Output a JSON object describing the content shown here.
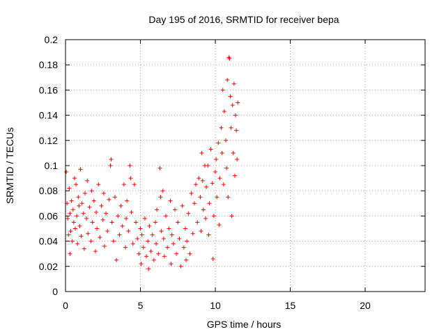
{
  "chart_data": {
    "type": "scatter",
    "title": "Day 195 of 2016, SRMTID for receiver bepa",
    "xlabel": "GPS time / hours",
    "ylabel": "SRMTID / TECUs",
    "xlim": [
      0,
      24
    ],
    "ylim": [
      0,
      0.2
    ],
    "x_ticks": [
      0,
      5,
      10,
      15,
      20
    ],
    "x_tick_labels": [
      "0",
      "5",
      "10",
      "15",
      "20"
    ],
    "y_ticks": [
      0,
      0.02,
      0.04,
      0.06,
      0.08,
      0.1,
      0.12,
      0.14,
      0.16,
      0.18,
      0.2
    ],
    "y_tick_labels": [
      "0",
      "0.02",
      "0.04",
      "0.06",
      "0.08",
      "0.1",
      "0.12",
      "0.14",
      "0.16",
      "0.18",
      "0.2"
    ],
    "grid": true,
    "marker": "+",
    "color": "#ff0000",
    "series": [
      {
        "name": "SRMTID",
        "points": [
          [
            0.05,
            0.095
          ],
          [
            0.1,
            0.07
          ],
          [
            0.15,
            0.058
          ],
          [
            0.2,
            0.045
          ],
          [
            0.25,
            0.082
          ],
          [
            0.3,
            0.03
          ],
          [
            0.3,
            0.062
          ],
          [
            0.35,
            0.048
          ],
          [
            0.4,
            0.072
          ],
          [
            0.45,
            0.04
          ],
          [
            0.5,
            0.065
          ],
          [
            0.55,
            0.055
          ],
          [
            0.6,
            0.09
          ],
          [
            0.65,
            0.05
          ],
          [
            0.7,
            0.085
          ],
          [
            0.75,
            0.06
          ],
          [
            0.8,
            0.038
          ],
          [
            0.85,
            0.075
          ],
          [
            0.9,
            0.068
          ],
          [
            0.95,
            0.052
          ],
          [
            1.0,
            0.097
          ],
          [
            1.05,
            0.044
          ],
          [
            1.1,
            0.07
          ],
          [
            1.2,
            0.062
          ],
          [
            1.25,
            0.034
          ],
          [
            1.3,
            0.078
          ],
          [
            1.4,
            0.058
          ],
          [
            1.45,
            0.088
          ],
          [
            1.5,
            0.046
          ],
          [
            1.6,
            0.067
          ],
          [
            1.7,
            0.04
          ],
          [
            1.75,
            0.08
          ],
          [
            1.8,
            0.055
          ],
          [
            1.9,
            0.072
          ],
          [
            2.0,
            0.032
          ],
          [
            2.05,
            0.063
          ],
          [
            2.1,
            0.05
          ],
          [
            2.2,
            0.085
          ],
          [
            2.3,
            0.043
          ],
          [
            2.4,
            0.068
          ],
          [
            2.5,
            0.057
          ],
          [
            2.55,
            0.078
          ],
          [
            2.6,
            0.036
          ],
          [
            2.7,
            0.062
          ],
          [
            2.8,
            0.048
          ],
          [
            2.9,
            0.073
          ],
          [
            3.0,
            0.1
          ],
          [
            3.05,
            0.105
          ],
          [
            3.1,
            0.055
          ],
          [
            3.2,
            0.04
          ],
          [
            3.3,
            0.075
          ],
          [
            3.4,
            0.025
          ],
          [
            3.5,
            0.06
          ],
          [
            3.6,
            0.045
          ],
          [
            3.7,
            0.068
          ],
          [
            3.8,
            0.052
          ],
          [
            3.9,
            0.085
          ],
          [
            4.0,
            0.035
          ],
          [
            4.05,
            0.058
          ],
          [
            4.1,
            0.072
          ],
          [
            4.2,
            0.048
          ],
          [
            4.3,
            0.1
          ],
          [
            4.35,
            0.09
          ],
          [
            4.4,
            0.063
          ],
          [
            4.5,
            0.038
          ],
          [
            4.6,
            0.085
          ],
          [
            4.7,
            0.055
          ],
          [
            4.8,
            0.042
          ],
          [
            4.9,
            0.03
          ],
          [
            5.0,
            0.05
          ],
          [
            5.05,
            0.022
          ],
          [
            5.1,
            0.045
          ],
          [
            5.2,
            0.035
          ],
          [
            5.3,
            0.058
          ],
          [
            5.4,
            0.028
          ],
          [
            5.5,
            0.04
          ],
          [
            5.55,
            0.018
          ],
          [
            5.6,
            0.052
          ],
          [
            5.7,
            0.032
          ],
          [
            5.8,
            0.045
          ],
          [
            5.9,
            0.025
          ],
          [
            6.0,
            0.055
          ],
          [
            6.05,
            0.038
          ],
          [
            6.1,
            0.065
          ],
          [
            6.2,
            0.03
          ],
          [
            6.3,
            0.098
          ],
          [
            6.35,
            0.075
          ],
          [
            6.4,
            0.048
          ],
          [
            6.5,
            0.08
          ],
          [
            6.55,
            0.042
          ],
          [
            6.6,
            0.028
          ],
          [
            6.7,
            0.06
          ],
          [
            6.8,
            0.035
          ],
          [
            6.9,
            0.05
          ],
          [
            7.0,
            0.072
          ],
          [
            7.05,
            0.022
          ],
          [
            7.1,
            0.045
          ],
          [
            7.2,
            0.038
          ],
          [
            7.3,
            0.065
          ],
          [
            7.4,
            0.03
          ],
          [
            7.5,
            0.055
          ],
          [
            7.6,
            0.042
          ],
          [
            7.7,
            0.02
          ],
          [
            7.8,
            0.068
          ],
          [
            7.9,
            0.035
          ],
          [
            8.0,
            0.05
          ],
          [
            8.05,
            0.025
          ],
          [
            8.1,
            0.04
          ],
          [
            8.2,
            0.062
          ],
          [
            8.3,
            0.03
          ],
          [
            8.4,
            0.078
          ],
          [
            8.5,
            0.046
          ],
          [
            8.6,
            0.07
          ],
          [
            8.7,
            0.085
          ],
          [
            8.8,
            0.055
          ],
          [
            8.9,
            0.09
          ],
          [
            9.0,
            0.075
          ],
          [
            9.05,
            0.048
          ],
          [
            9.1,
            0.11
          ],
          [
            9.15,
            0.088
          ],
          [
            9.2,
            0.065
          ],
          [
            9.3,
            0.1
          ],
          [
            9.35,
            0.058
          ],
          [
            9.4,
            0.083
          ],
          [
            9.5,
            0.1
          ],
          [
            9.55,
            0.045
          ],
          [
            9.6,
            0.07
          ],
          [
            9.7,
            0.113
          ],
          [
            9.8,
            0.086
          ],
          [
            9.85,
            0.026
          ],
          [
            9.9,
            0.06
          ],
          [
            10.0,
            0.095
          ],
          [
            10.05,
            0.105
          ],
          [
            10.1,
            0.075
          ],
          [
            10.2,
            0.118
          ],
          [
            10.25,
            0.053
          ],
          [
            10.3,
            0.09
          ],
          [
            10.4,
            0.13
          ],
          [
            10.45,
            0.11
          ],
          [
            10.5,
            0.16
          ],
          [
            10.55,
            0.085
          ],
          [
            10.6,
            0.143
          ],
          [
            10.7,
            0.12
          ],
          [
            10.75,
            0.098
          ],
          [
            10.8,
            0.168
          ],
          [
            10.85,
            0.075
          ],
          [
            10.9,
            0.186
          ],
          [
            10.95,
            0.185
          ],
          [
            11.0,
            0.155
          ],
          [
            11.05,
            0.13
          ],
          [
            11.1,
            0.06
          ],
          [
            11.15,
            0.148
          ],
          [
            11.2,
            0.11
          ],
          [
            11.25,
            0.165
          ],
          [
            11.3,
            0.092
          ],
          [
            11.35,
            0.14
          ],
          [
            11.4,
            0.128
          ],
          [
            11.45,
            0.105
          ],
          [
            11.5,
            0.15
          ]
        ]
      }
    ]
  }
}
